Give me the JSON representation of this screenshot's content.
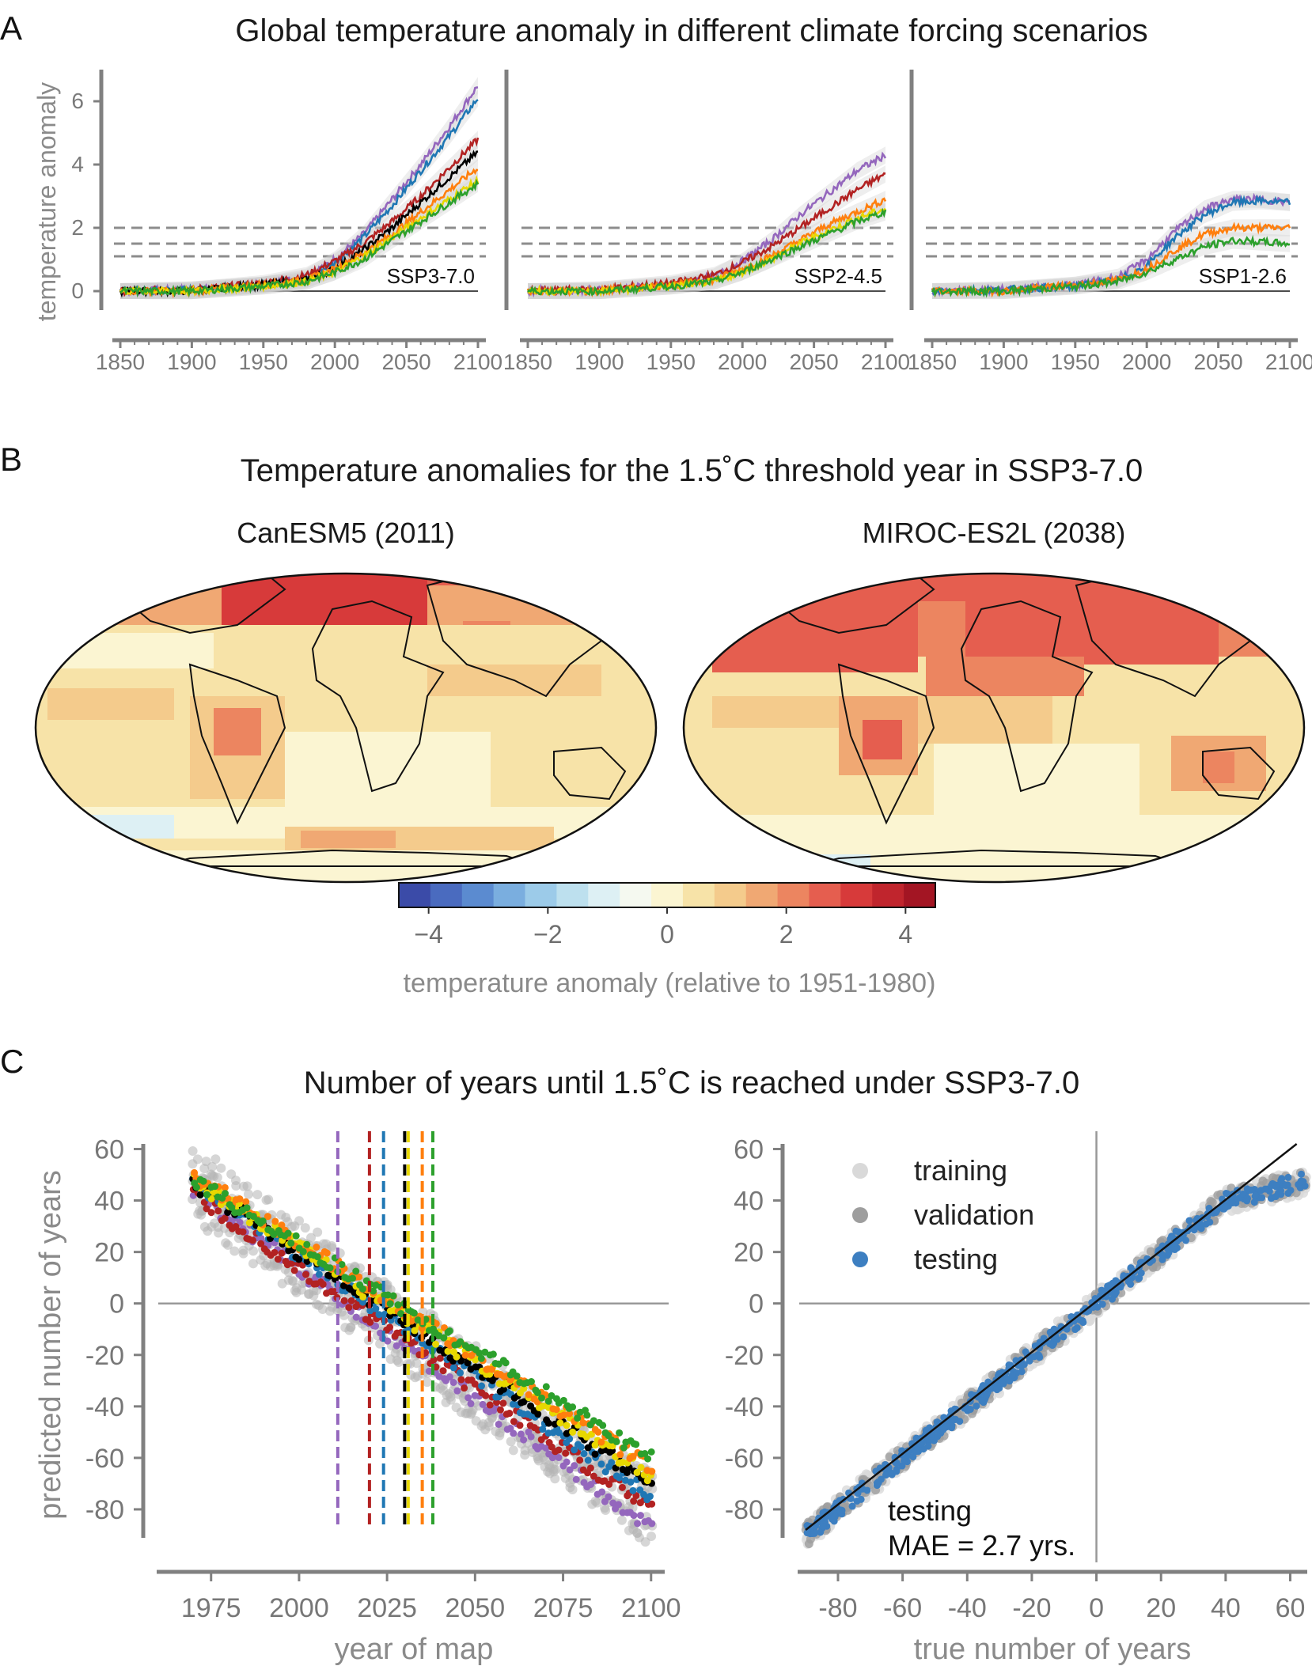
{
  "panel_labels": [
    "A",
    "B",
    "C"
  ],
  "titles": {
    "a": "Global temperature anomaly in different climate forcing scenarios",
    "b": "Temperature anomalies for the 1.5˚C threshold year in SSP3-7.0",
    "c": "Number of years until 1.5˚C is reached under SSP3-7.0"
  },
  "colors": {
    "axis": "#808080",
    "dashed": "#8c8c8c",
    "model_purple": "#9467bd",
    "model_blue": "#1f77b4",
    "model_red": "#b22222",
    "model_black": "#000000",
    "model_orange": "#ff7f0e",
    "model_yellow": "#e8d800",
    "model_green": "#2ca02c",
    "training": "#d9d9d9",
    "validation": "#9e9e9e",
    "testing": "#3d7fc1"
  },
  "chart_data": [
    {
      "type": "line",
      "panel": "A",
      "scenario_label": "SSP3-7.0",
      "ylabel": "temperature anomaly",
      "xlabel": "",
      "x_ticks": [
        "1850",
        "1900",
        "1950",
        "2000",
        "2050",
        "2100"
      ],
      "y_ticks": [
        "0",
        "2",
        "4",
        "6"
      ],
      "xlim": [
        1850,
        2100
      ],
      "ylim": [
        -0.6,
        7
      ],
      "thresholds": [
        1.1,
        1.5,
        2.0
      ],
      "series": [
        {
          "color": "purple",
          "x": [
            1850,
            1900,
            1950,
            1980,
            2000,
            2020,
            2040,
            2060,
            2080,
            2100
          ],
          "values": [
            0,
            0.05,
            0.2,
            0.45,
            1.0,
            1.8,
            2.9,
            4.0,
            5.2,
            6.5
          ]
        },
        {
          "color": "blue",
          "x": [
            1850,
            1900,
            1950,
            1980,
            2000,
            2020,
            2040,
            2060,
            2080,
            2100
          ],
          "values": [
            0,
            0.05,
            0.2,
            0.4,
            0.9,
            1.7,
            2.7,
            3.8,
            4.9,
            6.1
          ]
        },
        {
          "color": "red",
          "x": [
            1850,
            1900,
            1950,
            1980,
            2000,
            2020,
            2040,
            2060,
            2080,
            2100
          ],
          "values": [
            0,
            0.05,
            0.25,
            0.5,
            0.95,
            1.5,
            2.2,
            3.0,
            3.9,
            4.8
          ]
        },
        {
          "color": "black",
          "x": [
            1850,
            1900,
            1950,
            1980,
            2000,
            2020,
            2040,
            2060,
            2080,
            2100
          ],
          "values": [
            0,
            0.0,
            0.2,
            0.35,
            0.7,
            1.3,
            2.0,
            2.8,
            3.6,
            4.4
          ]
        },
        {
          "color": "orange",
          "x": [
            1850,
            1900,
            1950,
            1980,
            2000,
            2020,
            2040,
            2060,
            2080,
            2100
          ],
          "values": [
            0,
            0.0,
            0.2,
            0.35,
            0.7,
            1.2,
            1.8,
            2.5,
            3.2,
            3.9
          ]
        },
        {
          "color": "yellow",
          "x": [
            1850,
            1900,
            1950,
            1980,
            2000,
            2020,
            2040,
            2060,
            2080,
            2100
          ],
          "values": [
            0,
            0.0,
            0.15,
            0.3,
            0.6,
            1.1,
            1.7,
            2.3,
            2.9,
            3.5
          ]
        },
        {
          "color": "green",
          "x": [
            1850,
            1900,
            1950,
            1980,
            2000,
            2020,
            2040,
            2060,
            2080,
            2100
          ],
          "values": [
            0,
            0.0,
            0.15,
            0.3,
            0.6,
            1.0,
            1.6,
            2.2,
            2.8,
            3.4
          ]
        }
      ]
    },
    {
      "type": "line",
      "panel": "A",
      "scenario_label": "SSP2-4.5",
      "xlabel": "",
      "x_ticks": [
        "1850",
        "1900",
        "1950",
        "2000",
        "2050",
        "2100"
      ],
      "xlim": [
        1850,
        2100
      ],
      "ylim": [
        -0.6,
        7
      ],
      "thresholds": [
        1.1,
        1.5,
        2.0
      ],
      "series": [
        {
          "color": "purple",
          "x": [
            1850,
            1900,
            1950,
            1980,
            2000,
            2020,
            2040,
            2060,
            2080,
            2100
          ],
          "values": [
            0,
            0.05,
            0.2,
            0.45,
            0.95,
            1.6,
            2.4,
            3.1,
            3.8,
            4.3
          ]
        },
        {
          "color": "red",
          "x": [
            1850,
            1900,
            1950,
            1980,
            2000,
            2020,
            2040,
            2060,
            2080,
            2100
          ],
          "values": [
            0,
            0.05,
            0.25,
            0.5,
            0.9,
            1.4,
            2.0,
            2.6,
            3.2,
            3.7
          ]
        },
        {
          "color": "orange",
          "x": [
            1850,
            1900,
            1950,
            1980,
            2000,
            2020,
            2040,
            2060,
            2080,
            2100
          ],
          "values": [
            0,
            0.0,
            0.2,
            0.35,
            0.7,
            1.1,
            1.6,
            2.1,
            2.5,
            2.9
          ]
        },
        {
          "color": "yellow",
          "x": [
            1850,
            1900,
            1950,
            1980,
            2000,
            2020,
            2040,
            2060,
            2080,
            2100
          ],
          "values": [
            0,
            0.0,
            0.15,
            0.3,
            0.6,
            1.0,
            1.5,
            1.9,
            2.3,
            2.6
          ]
        },
        {
          "color": "green",
          "x": [
            1850,
            1900,
            1950,
            1980,
            2000,
            2020,
            2040,
            2060,
            2080,
            2100
          ],
          "values": [
            0,
            0.0,
            0.15,
            0.3,
            0.6,
            1.0,
            1.4,
            1.8,
            2.2,
            2.5
          ]
        }
      ]
    },
    {
      "type": "line",
      "panel": "A",
      "scenario_label": "SSP1-2.6",
      "xlabel": "",
      "x_ticks": [
        "1850",
        "1900",
        "1950",
        "2000",
        "2050",
        "2100"
      ],
      "xlim": [
        1850,
        2100
      ],
      "ylim": [
        -0.6,
        7
      ],
      "thresholds": [
        1.1,
        1.5,
        2.0
      ],
      "series": [
        {
          "color": "purple",
          "x": [
            1850,
            1900,
            1950,
            1980,
            2000,
            2020,
            2040,
            2060,
            2080,
            2100
          ],
          "values": [
            0,
            0.05,
            0.2,
            0.45,
            1.0,
            1.9,
            2.6,
            2.9,
            2.9,
            2.8
          ]
        },
        {
          "color": "blue",
          "x": [
            1850,
            1900,
            1950,
            1980,
            2000,
            2020,
            2040,
            2060,
            2080,
            2100
          ],
          "values": [
            0,
            0.05,
            0.15,
            0.35,
            0.8,
            1.7,
            2.4,
            2.8,
            2.85,
            2.8
          ]
        },
        {
          "color": "orange",
          "x": [
            1850,
            1900,
            1950,
            1980,
            2000,
            2020,
            2040,
            2060,
            2080,
            2100
          ],
          "values": [
            0,
            0.0,
            0.2,
            0.35,
            0.7,
            1.3,
            1.8,
            2.0,
            2.0,
            2.0
          ]
        },
        {
          "color": "green",
          "x": [
            1850,
            1900,
            1950,
            1980,
            2000,
            2020,
            2040,
            2060,
            2080,
            2100
          ],
          "values": [
            0,
            0.0,
            0.15,
            0.3,
            0.6,
            1.0,
            1.4,
            1.6,
            1.55,
            1.5
          ]
        }
      ]
    },
    {
      "type": "heatmap",
      "panel": "B",
      "maps": [
        {
          "title": "CanESM5 (2011)"
        },
        {
          "title": "MIROC-ES2L (2038)"
        }
      ],
      "colorbar_ticks": [
        "−4",
        "−2",
        "0",
        "2",
        "4"
      ],
      "colorbar_range": [
        -4.5,
        4.5
      ],
      "colorbar_label": "temperature anomaly (relative to 1951-1980)",
      "colorbar_colors": [
        "#3b4ba8",
        "#4a6bbf",
        "#5b8bd0",
        "#7aaedf",
        "#9ccbe9",
        "#bde0ee",
        "#ddf0f4",
        "#f5f9f0",
        "#fbf5d2",
        "#f7e3a8",
        "#f4cb8c",
        "#f0a873",
        "#ec8560",
        "#e55e4f",
        "#d73a3a",
        "#c0252d",
        "#a31523"
      ]
    },
    {
      "type": "scatter",
      "panel": "C",
      "xlabel": "year of map",
      "ylabel": "predicted number of years",
      "x_ticks": [
        "1975",
        "2000",
        "2025",
        "2050",
        "2075",
        "2100"
      ],
      "y_ticks": [
        "60",
        "40",
        "20",
        "0",
        "-20",
        "-40",
        "-60",
        "-80"
      ],
      "xlim": [
        1960,
        2105
      ],
      "ylim": [
        -88,
        62
      ],
      "threshold_years": {
        "purple": 2011,
        "red": 2020,
        "blue": 2024,
        "black": 2030,
        "yellow": 2031,
        "orange": 2035,
        "green": 2038
      },
      "series": [
        {
          "color": "purple",
          "x": [
            1970,
            2100
          ],
          "values": [
            44,
            -88
          ]
        },
        {
          "color": "red",
          "x": [
            1970,
            2100
          ],
          "values": [
            42,
            -80
          ]
        },
        {
          "color": "blue",
          "x": [
            1970,
            2100
          ],
          "values": [
            47,
            -75
          ]
        },
        {
          "color": "black",
          "x": [
            1970,
            2100
          ],
          "values": [
            47,
            -70
          ]
        },
        {
          "color": "yellow",
          "x": [
            1970,
            2100
          ],
          "values": [
            48,
            -67
          ]
        },
        {
          "color": "orange",
          "x": [
            1970,
            2100
          ],
          "values": [
            50,
            -64
          ]
        },
        {
          "color": "green",
          "x": [
            1970,
            2100
          ],
          "values": [
            48,
            -60
          ]
        }
      ]
    },
    {
      "type": "scatter",
      "panel": "C",
      "xlabel": "true number of years",
      "ylabel": "",
      "x_ticks": [
        "-80",
        "-60",
        "-40",
        "-20",
        "0",
        "20",
        "40",
        "60"
      ],
      "y_ticks": [
        "60",
        "40",
        "20",
        "0",
        "-20",
        "-40",
        "-60",
        "-80"
      ],
      "xlim": [
        -92,
        66
      ],
      "ylim": [
        -88,
        62
      ],
      "legend": [
        "training",
        "validation",
        "testing"
      ],
      "legend_position": "top-left",
      "annotation": [
        "testing",
        "MAE = 2.7 yrs."
      ],
      "one_to_one_line": true
    }
  ]
}
